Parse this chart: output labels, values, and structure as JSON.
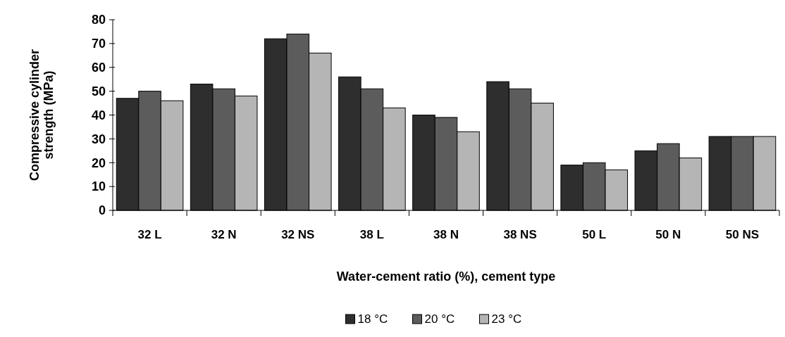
{
  "chart_data": {
    "type": "bar",
    "xlabel": "Water-cement ratio (%), cement type",
    "ylabel": "Compressive cylinder strength (MPa)",
    "categories": [
      "32 L",
      "32 N",
      "32 NS",
      "38 L",
      "38 N",
      "38 NS",
      "50 L",
      "50 N",
      "50 NS"
    ],
    "series": [
      {
        "name": "18 °C",
        "color": "#2e2e2e",
        "values": [
          47,
          53,
          72,
          56,
          40,
          54,
          19,
          25,
          31
        ]
      },
      {
        "name": "20 °C",
        "color": "#5c5c5c",
        "values": [
          50,
          51,
          74,
          51,
          39,
          51,
          20,
          28,
          31
        ]
      },
      {
        "name": "23 °C",
        "color": "#b5b5b5",
        "values": [
          46,
          48,
          66,
          43,
          33,
          45,
          17,
          22,
          31
        ]
      }
    ],
    "ylim": [
      0,
      80
    ],
    "yticks": [
      0,
      10,
      20,
      30,
      40,
      50,
      60,
      70,
      80
    ],
    "legend": "bottom"
  }
}
